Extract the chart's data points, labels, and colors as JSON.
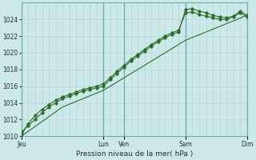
{
  "xlabel": "Pression niveau de la mer( hPa )",
  "bg_color": "#cce8e8",
  "grid_minor_color": "#b8d8d8",
  "grid_major_color": "#7aabab",
  "line_color": "#2d6e2d",
  "ylim": [
    1010,
    1026
  ],
  "yticks": [
    1010,
    1012,
    1014,
    1016,
    1018,
    1020,
    1022,
    1024
  ],
  "day_labels": [
    "Jeu",
    "Lun",
    "Ven",
    "Sam",
    "Dim"
  ],
  "day_positions": [
    0,
    96,
    120,
    192,
    264
  ],
  "total_steps": 264,
  "minor_grid_step": 8,
  "major_grid_positions": [
    0,
    96,
    120,
    192,
    264
  ],
  "line1_x": [
    0,
    8,
    16,
    24,
    32,
    40,
    48,
    56,
    64,
    72,
    80,
    88,
    96,
    104,
    112,
    120,
    128,
    136,
    144,
    152,
    160,
    168,
    176,
    184,
    192,
    200,
    208,
    216,
    224,
    232,
    240,
    248,
    256,
    264
  ],
  "line1_y": [
    1010.5,
    1011.3,
    1012.0,
    1012.8,
    1013.5,
    1014.0,
    1014.5,
    1014.8,
    1015.1,
    1015.4,
    1015.6,
    1015.8,
    1016.0,
    1016.8,
    1017.5,
    1018.3,
    1019.0,
    1019.6,
    1020.2,
    1020.8,
    1021.3,
    1021.8,
    1022.2,
    1022.5,
    1025.2,
    1025.3,
    1025.0,
    1024.8,
    1024.5,
    1024.3,
    1024.2,
    1024.4,
    1025.0,
    1024.5
  ],
  "line2_x": [
    0,
    8,
    16,
    24,
    32,
    40,
    48,
    56,
    64,
    72,
    80,
    88,
    96,
    104,
    112,
    120,
    128,
    136,
    144,
    152,
    160,
    168,
    176,
    184,
    192,
    200,
    208,
    216,
    224,
    232,
    240,
    248,
    256,
    264
  ],
  "line2_y": [
    1010.2,
    1011.5,
    1012.5,
    1013.2,
    1013.8,
    1014.3,
    1014.7,
    1015.0,
    1015.3,
    1015.6,
    1015.8,
    1016.0,
    1016.3,
    1017.0,
    1017.8,
    1018.5,
    1019.2,
    1019.8,
    1020.4,
    1021.0,
    1021.5,
    1022.0,
    1022.4,
    1022.7,
    1024.8,
    1024.9,
    1024.6,
    1024.4,
    1024.2,
    1024.0,
    1024.0,
    1024.3,
    1024.8,
    1024.3
  ],
  "line3_x": [
    0,
    48,
    96,
    144,
    192,
    240,
    264
  ],
  "line3_y": [
    1010.0,
    1013.5,
    1015.5,
    1018.5,
    1021.5,
    1023.5,
    1024.5
  ]
}
